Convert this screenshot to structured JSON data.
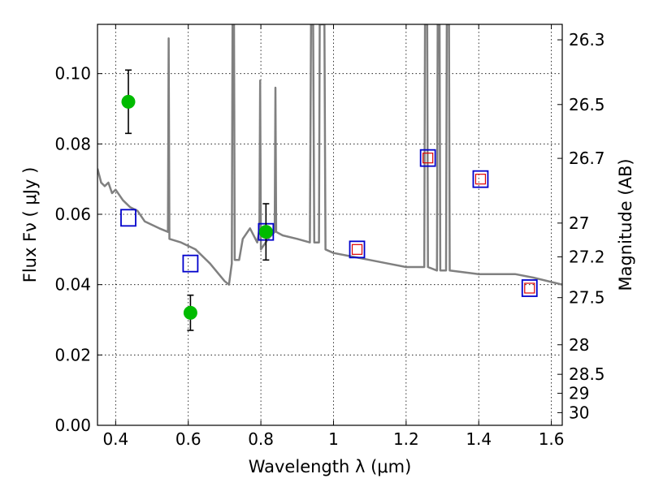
{
  "chart_data": {
    "type": "scatter",
    "xlabel": "Wavelength  λ (μm)",
    "ylabel": "Flux  Fν  ( μJy )",
    "y2label": "Magnitude (AB)",
    "xlim": [
      0.35,
      1.63
    ],
    "ylim": [
      0.0,
      0.114
    ],
    "grid": true,
    "x_ticks": [
      0.4,
      0.6,
      0.8,
      1.0,
      1.2,
      1.4,
      1.6
    ],
    "x_tick_labels": [
      "0.4",
      "0.6",
      "0.8",
      "1",
      "1.2",
      "1.4",
      "1.6"
    ],
    "y_ticks": [
      0.0,
      0.02,
      0.04,
      0.06,
      0.08,
      0.1
    ],
    "y_tick_labels": [
      "0.00",
      "0.02",
      "0.04",
      "0.06",
      "0.08",
      "0.10"
    ],
    "mag_ticks": [
      {
        "label": "26.3",
        "flux": 0.1096
      },
      {
        "label": "26.5",
        "flux": 0.0912
      },
      {
        "label": "26.7",
        "flux": 0.0759
      },
      {
        "label": "27",
        "flux": 0.0575
      },
      {
        "label": "27.2",
        "flux": 0.0479
      },
      {
        "label": "27.5",
        "flux": 0.0363
      },
      {
        "label": "28",
        "flux": 0.0229
      },
      {
        "label": "28.5",
        "flux": 0.0145
      },
      {
        "label": "29",
        "flux": 0.0091
      },
      {
        "label": "30",
        "flux": 0.0036
      }
    ],
    "series": [
      {
        "kind": "observed",
        "color": "#00bb00",
        "points": [
          {
            "x": 0.435,
            "y": 0.092,
            "err_low": 0.083,
            "err_high": 0.101
          },
          {
            "x": 0.606,
            "y": 0.032,
            "err_low": 0.027,
            "err_high": 0.037
          },
          {
            "x": 0.814,
            "y": 0.055,
            "err_low": 0.047,
            "err_high": 0.063
          }
        ]
      },
      {
        "kind": "model-blue",
        "color": "#0000cc",
        "points": [
          {
            "x": 0.435,
            "y": 0.059
          },
          {
            "x": 0.606,
            "y": 0.046
          },
          {
            "x": 0.814,
            "y": 0.055
          },
          {
            "x": 1.065,
            "y": 0.05
          },
          {
            "x": 1.26,
            "y": 0.076
          },
          {
            "x": 1.405,
            "y": 0.07
          },
          {
            "x": 1.54,
            "y": 0.039
          }
        ]
      },
      {
        "kind": "model-red",
        "color": "#dd0000",
        "points": [
          {
            "x": 1.065,
            "y": 0.05
          },
          {
            "x": 1.26,
            "y": 0.076
          },
          {
            "x": 1.405,
            "y": 0.07
          },
          {
            "x": 1.54,
            "y": 0.039
          }
        ]
      },
      {
        "kind": "sed-template",
        "color": "#808080",
        "points": [
          {
            "x": 0.35,
            "y": 0.073
          },
          {
            "x": 0.36,
            "y": 0.069
          },
          {
            "x": 0.37,
            "y": 0.068
          },
          {
            "x": 0.38,
            "y": 0.069
          },
          {
            "x": 0.39,
            "y": 0.066
          },
          {
            "x": 0.4,
            "y": 0.067
          },
          {
            "x": 0.42,
            "y": 0.064
          },
          {
            "x": 0.44,
            "y": 0.062
          },
          {
            "x": 0.46,
            "y": 0.061
          },
          {
            "x": 0.48,
            "y": 0.058
          },
          {
            "x": 0.5,
            "y": 0.057
          },
          {
            "x": 0.52,
            "y": 0.056
          },
          {
            "x": 0.544,
            "y": 0.055
          },
          {
            "x": 0.546,
            "y": 0.11
          },
          {
            "x": 0.548,
            "y": 0.053
          },
          {
            "x": 0.58,
            "y": 0.052
          },
          {
            "x": 0.62,
            "y": 0.05
          },
          {
            "x": 0.66,
            "y": 0.046
          },
          {
            "x": 0.7,
            "y": 0.041
          },
          {
            "x": 0.712,
            "y": 0.04
          },
          {
            "x": 0.72,
            "y": 0.046
          },
          {
            "x": 0.722,
            "y": 0.114
          },
          {
            "x": 0.726,
            "y": 0.114
          },
          {
            "x": 0.728,
            "y": 0.047
          },
          {
            "x": 0.74,
            "y": 0.047
          },
          {
            "x": 0.75,
            "y": 0.053
          },
          {
            "x": 0.77,
            "y": 0.056
          },
          {
            "x": 0.79,
            "y": 0.052
          },
          {
            "x": 0.796,
            "y": 0.056
          },
          {
            "x": 0.798,
            "y": 0.098
          },
          {
            "x": 0.8,
            "y": 0.05
          },
          {
            "x": 0.82,
            "y": 0.053
          },
          {
            "x": 0.838,
            "y": 0.055
          },
          {
            "x": 0.84,
            "y": 0.096
          },
          {
            "x": 0.842,
            "y": 0.055
          },
          {
            "x": 0.86,
            "y": 0.054
          },
          {
            "x": 0.9,
            "y": 0.053
          },
          {
            "x": 0.935,
            "y": 0.052
          },
          {
            "x": 0.938,
            "y": 0.114
          },
          {
            "x": 0.944,
            "y": 0.114
          },
          {
            "x": 0.947,
            "y": 0.052
          },
          {
            "x": 0.96,
            "y": 0.052
          },
          {
            "x": 0.962,
            "y": 0.114
          },
          {
            "x": 0.975,
            "y": 0.114
          },
          {
            "x": 0.978,
            "y": 0.05
          },
          {
            "x": 1.0,
            "y": 0.049
          },
          {
            "x": 1.05,
            "y": 0.048
          },
          {
            "x": 1.1,
            "y": 0.047
          },
          {
            "x": 1.15,
            "y": 0.046
          },
          {
            "x": 1.2,
            "y": 0.045
          },
          {
            "x": 1.25,
            "y": 0.045
          },
          {
            "x": 1.252,
            "y": 0.114
          },
          {
            "x": 1.258,
            "y": 0.114
          },
          {
            "x": 1.26,
            "y": 0.045
          },
          {
            "x": 1.285,
            "y": 0.044
          },
          {
            "x": 1.287,
            "y": 0.114
          },
          {
            "x": 1.292,
            "y": 0.114
          },
          {
            "x": 1.294,
            "y": 0.044
          },
          {
            "x": 1.31,
            "y": 0.044
          },
          {
            "x": 1.312,
            "y": 0.114
          },
          {
            "x": 1.318,
            "y": 0.114
          },
          {
            "x": 1.32,
            "y": 0.044
          },
          {
            "x": 1.4,
            "y": 0.043
          },
          {
            "x": 1.5,
            "y": 0.043
          },
          {
            "x": 1.55,
            "y": 0.042
          },
          {
            "x": 1.63,
            "y": 0.04
          }
        ]
      }
    ]
  }
}
